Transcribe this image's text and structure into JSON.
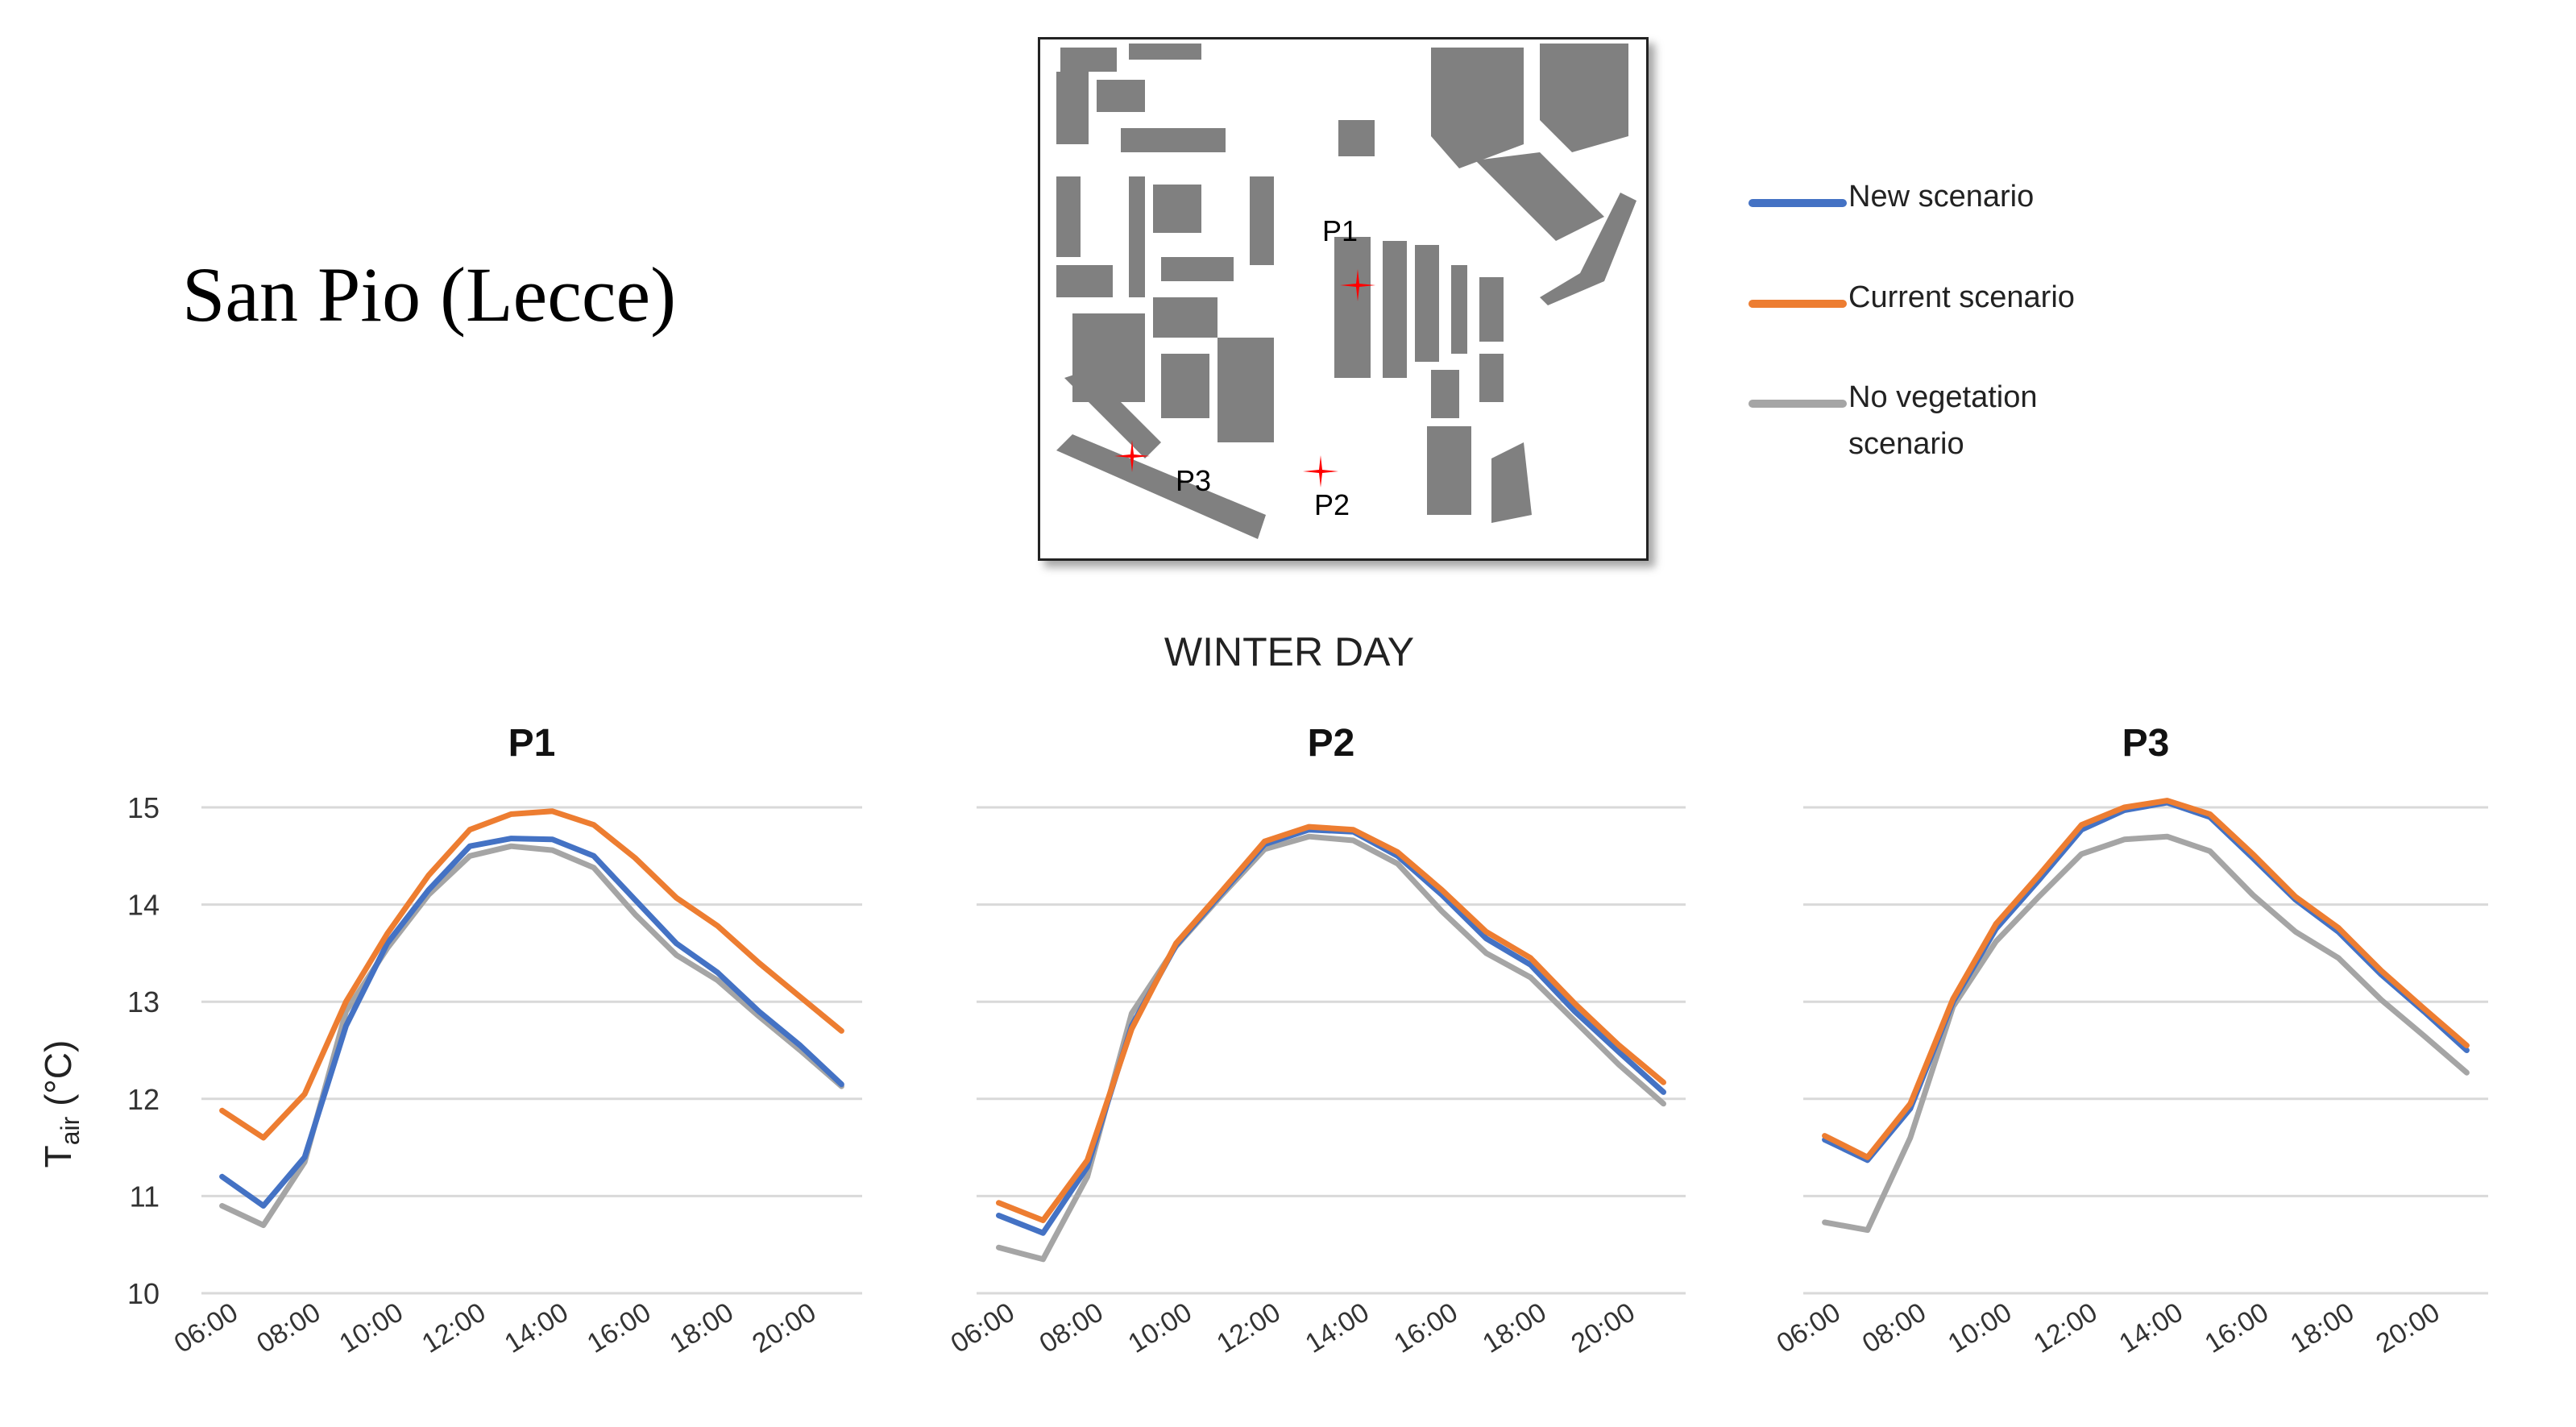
{
  "page_title": "San Pio (Lecce)",
  "section_title": "WINTER DAY",
  "colors": {
    "new": "#4472C4",
    "current": "#ED7D31",
    "novegetation": "#A5A5A5",
    "grid": "#D9D9D9",
    "building": "#808080",
    "marker": "#FF0000"
  },
  "legend": [
    {
      "key": "new",
      "label": "New scenario"
    },
    {
      "key": "current",
      "label": "Current scenario"
    },
    {
      "key": "novegetation",
      "label": "No vegetation scenario"
    }
  ],
  "map": {
    "points": [
      "P1",
      "P2",
      "P3"
    ]
  },
  "ylabel": {
    "main": "T",
    "sub": "air",
    "unit": " (°C)"
  },
  "chart_data": [
    {
      "type": "line",
      "title": "P1",
      "ylabel": "Tair (°C)",
      "ylim": [
        10,
        15
      ],
      "yticks": [
        "10",
        "11",
        "12",
        "13",
        "14",
        "15"
      ],
      "categories": [
        "06:00",
        "07:00",
        "08:00",
        "09:00",
        "10:00",
        "11:00",
        "12:00",
        "13:00",
        "14:00",
        "15:00",
        "16:00",
        "17:00",
        "18:00",
        "19:00",
        "20:00",
        "21:00"
      ],
      "xtick_labels": [
        "06:00",
        "08:00",
        "10:00",
        "12:00",
        "14:00",
        "16:00",
        "18:00",
        "20:00"
      ],
      "series": [
        {
          "name": "New scenario",
          "key": "new",
          "values": [
            11.2,
            10.9,
            11.4,
            12.75,
            13.6,
            14.15,
            14.6,
            14.68,
            14.67,
            14.5,
            14.05,
            13.6,
            13.3,
            12.9,
            12.55,
            12.15
          ]
        },
        {
          "name": "Current scenario",
          "key": "current",
          "values": [
            11.88,
            11.6,
            12.05,
            13.0,
            13.7,
            14.3,
            14.77,
            14.93,
            14.96,
            14.82,
            14.48,
            14.07,
            13.78,
            13.4,
            13.05,
            12.7
          ]
        },
        {
          "name": "No vegetation scenario",
          "key": "novegetation",
          "values": [
            10.9,
            10.7,
            11.35,
            12.9,
            13.55,
            14.1,
            14.5,
            14.6,
            14.56,
            14.38,
            13.9,
            13.48,
            13.22,
            12.85,
            12.5,
            12.13
          ]
        }
      ]
    },
    {
      "type": "line",
      "title": "P2",
      "ylim": [
        10,
        15
      ],
      "categories": [
        "06:00",
        "07:00",
        "08:00",
        "09:00",
        "10:00",
        "11:00",
        "12:00",
        "13:00",
        "14:00",
        "15:00",
        "16:00",
        "17:00",
        "18:00",
        "19:00",
        "20:00",
        "21:00"
      ],
      "xtick_labels": [
        "06:00",
        "08:00",
        "10:00",
        "12:00",
        "14:00",
        "16:00",
        "18:00",
        "20:00"
      ],
      "series": [
        {
          "name": "New scenario",
          "key": "new",
          "values": [
            10.8,
            10.62,
            11.3,
            12.75,
            13.58,
            14.1,
            14.62,
            14.77,
            14.75,
            14.5,
            14.1,
            13.65,
            13.38,
            12.9,
            12.48,
            12.07
          ]
        },
        {
          "name": "Current scenario",
          "key": "current",
          "values": [
            10.93,
            10.75,
            11.37,
            12.72,
            13.6,
            14.12,
            14.65,
            14.8,
            14.77,
            14.54,
            14.15,
            13.72,
            13.45,
            12.98,
            12.55,
            12.17
          ]
        },
        {
          "name": "No vegetation scenario",
          "key": "novegetation",
          "values": [
            10.47,
            10.35,
            11.2,
            12.88,
            13.57,
            14.08,
            14.57,
            14.7,
            14.66,
            14.42,
            13.93,
            13.5,
            13.25,
            12.8,
            12.35,
            11.95
          ]
        }
      ]
    },
    {
      "type": "line",
      "title": "P3",
      "ylim": [
        10,
        15
      ],
      "categories": [
        "06:00",
        "07:00",
        "08:00",
        "09:00",
        "10:00",
        "11:00",
        "12:00",
        "13:00",
        "14:00",
        "15:00",
        "16:00",
        "17:00",
        "18:00",
        "19:00",
        "20:00",
        "21:00"
      ],
      "xtick_labels": [
        "06:00",
        "08:00",
        "10:00",
        "12:00",
        "14:00",
        "16:00",
        "18:00",
        "20:00"
      ],
      "series": [
        {
          "name": "New scenario",
          "key": "new",
          "values": [
            11.58,
            11.37,
            11.9,
            13.0,
            13.75,
            14.25,
            14.77,
            14.97,
            15.05,
            14.9,
            14.48,
            14.05,
            13.72,
            13.28,
            12.9,
            12.5
          ]
        },
        {
          "name": "Current scenario",
          "key": "current",
          "values": [
            11.62,
            11.4,
            11.95,
            13.03,
            13.8,
            14.3,
            14.82,
            15.0,
            15.07,
            14.93,
            14.52,
            14.08,
            13.76,
            13.32,
            12.93,
            12.55
          ]
        },
        {
          "name": "No vegetation scenario",
          "key": "novegetation",
          "values": [
            10.73,
            10.65,
            11.6,
            12.95,
            13.62,
            14.08,
            14.52,
            14.67,
            14.7,
            14.55,
            14.1,
            13.72,
            13.45,
            13.02,
            12.65,
            12.27
          ]
        }
      ]
    }
  ]
}
